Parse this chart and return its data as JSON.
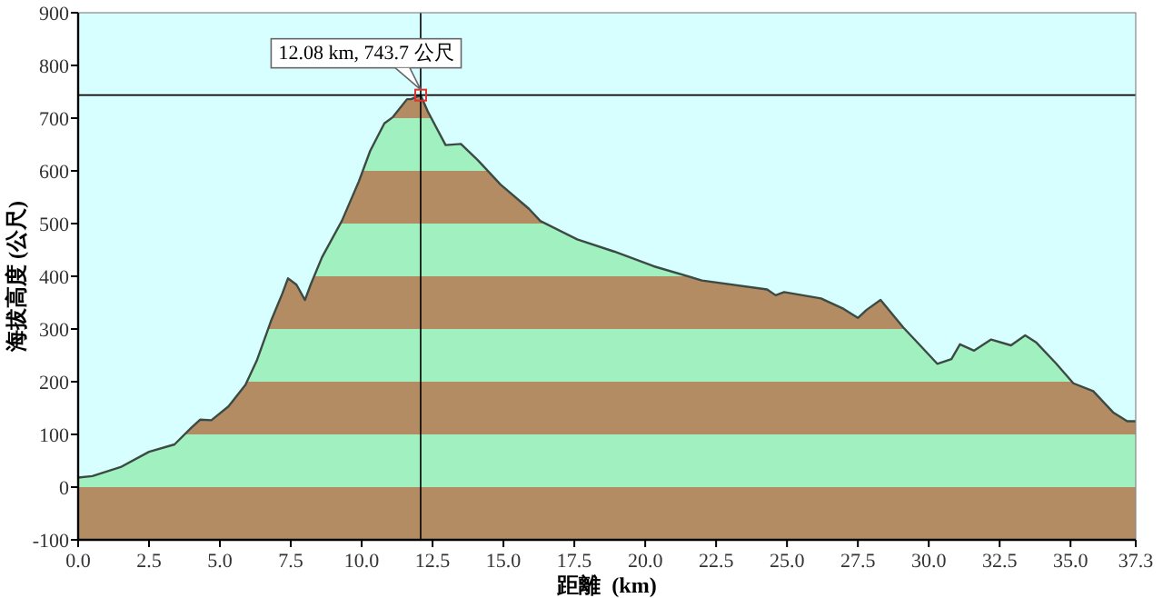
{
  "chart_data": {
    "type": "area",
    "xlabel": "距離  (km)",
    "ylabel": "海拔高度 (公尺)",
    "x": [
      0,
      0.5,
      1.5,
      2.5,
      3.4,
      4.0,
      4.3,
      4.7,
      5.3,
      5.9,
      6.3,
      6.8,
      7.2,
      7.4,
      7.7,
      8.0,
      8.2,
      8.6,
      9.3,
      9.9,
      10.3,
      10.8,
      11.1,
      11.6,
      11.74,
      12.08,
      12.33,
      12.96,
      13.5,
      14.1,
      14.9,
      15.9,
      16.3,
      17.6,
      18.9,
      20.3,
      22.0,
      24.3,
      24.6,
      24.9,
      26.2,
      27.0,
      27.5,
      27.8,
      28.3,
      29.1,
      29.8,
      30.3,
      30.8,
      31.1,
      31.6,
      32.2,
      32.9,
      33.4,
      33.8,
      34.5,
      35.1,
      35.8,
      36.5,
      37.0,
      37.3
    ],
    "series": [
      {
        "color": "#a0f0c0",
        "values": [
          18,
          21,
          38,
          67,
          81,
          113,
          128,
          127,
          153,
          194,
          240,
          315,
          367,
          396,
          384,
          355,
          384,
          436,
          505,
          580,
          638,
          690,
          702,
          736,
          736,
          743.7,
          713,
          649,
          651,
          620,
          574,
          528,
          505,
          470,
          447,
          419,
          392,
          375,
          364,
          370,
          358,
          338,
          321,
          336,
          355,
          303,
          263,
          234,
          243,
          271,
          259,
          280,
          269,
          288,
          274,
          234,
          197,
          182,
          142,
          125,
          125
        ]
      }
    ],
    "xlim": [
      0,
      37.3
    ],
    "ylim": [
      -100,
      900
    ],
    "xticks": [
      {
        "value": 0,
        "label": "0.0"
      },
      {
        "value": 2.5,
        "label": "2.5"
      },
      {
        "value": 5,
        "label": "5.0"
      },
      {
        "value": 7.5,
        "label": "7.5"
      },
      {
        "value": 10,
        "label": "10.0"
      },
      {
        "value": 12.5,
        "label": "12.5"
      },
      {
        "value": 15,
        "label": "15.0"
      },
      {
        "value": 17.5,
        "label": "17.5"
      },
      {
        "value": 20,
        "label": "20.0"
      },
      {
        "value": 22.5,
        "label": "22.5"
      },
      {
        "value": 25,
        "label": "25.0"
      },
      {
        "value": 27.5,
        "label": "27.5"
      },
      {
        "value": 30,
        "label": "30.0"
      },
      {
        "value": 32.5,
        "label": "32.5"
      },
      {
        "value": 35,
        "label": "35.0"
      },
      {
        "value": 37.3,
        "label": "37.3"
      }
    ],
    "yticks": [
      -100,
      0,
      100,
      200,
      300,
      400,
      500,
      600,
      700,
      800,
      900
    ],
    "ref_lines": [
      {
        "axis": "x",
        "value": 12.08,
        "color": "#000000"
      },
      {
        "axis": "y",
        "value": 743.7,
        "color": "#000000"
      }
    ],
    "annotations": [
      {
        "text": "12.08 km, 743.7 公尺",
        "x": 12.08,
        "y": 743.7
      }
    ]
  }
}
